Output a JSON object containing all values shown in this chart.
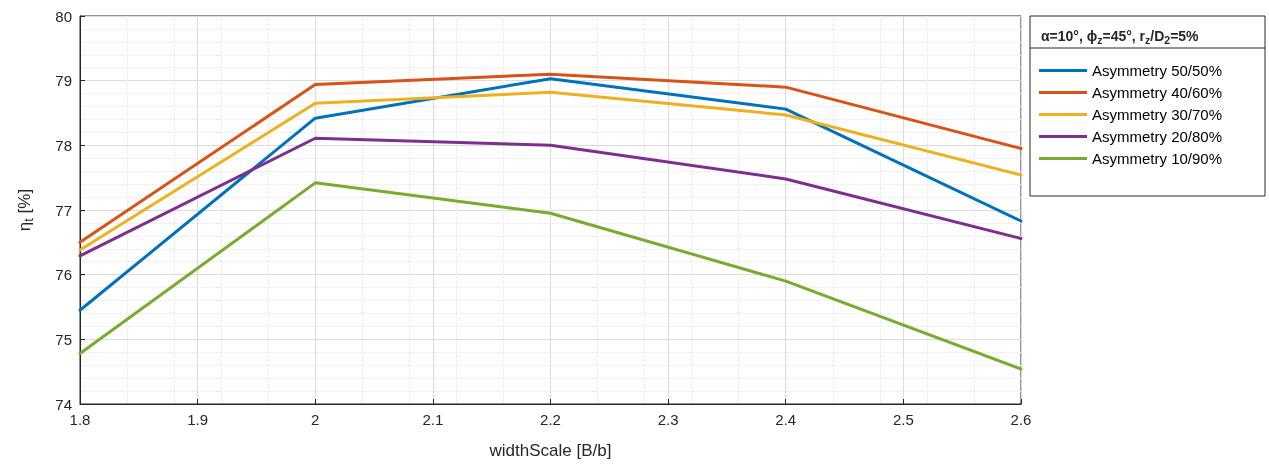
{
  "chart_data": {
    "type": "line",
    "xlabel": "widthScale [B/b]",
    "ylabel": "η$_{t}$ [%]",
    "legend_title": "α=10°, ϕ$_{z}$=45°, r$_{z}$/D$_{2}$=5%",
    "x": [
      1.8,
      2.0,
      2.2,
      2.4,
      2.6
    ],
    "series": [
      {
        "name": "Asymmetry 50/50%",
        "color": "#0072bd",
        "values": [
          75.45,
          78.42,
          79.03,
          78.56,
          76.83
        ]
      },
      {
        "name": "Asymmetry 40/60%",
        "color": "#d95319",
        "values": [
          76.5,
          78.94,
          79.1,
          78.9,
          77.95
        ]
      },
      {
        "name": "Asymmetry 30/70%",
        "color": "#edb120",
        "values": [
          76.38,
          78.65,
          78.82,
          78.47,
          77.54
        ]
      },
      {
        "name": "Asymmetry 20/80%",
        "color": "#7e2f8e",
        "values": [
          76.29,
          78.11,
          78.0,
          77.48,
          76.56
        ]
      },
      {
        "name": "Asymmetry 10/90%",
        "color": "#77ac30",
        "values": [
          74.78,
          77.42,
          76.95,
          75.9,
          74.54
        ]
      }
    ],
    "xlim": [
      1.8,
      2.6
    ],
    "xticks": [
      1.8,
      1.9,
      2,
      2.1,
      2.2,
      2.3,
      2.4,
      2.5,
      2.6
    ],
    "ylim": [
      74,
      80
    ],
    "yticks": [
      74,
      75,
      76,
      77,
      78,
      79,
      80
    ],
    "grid": true,
    "legend": "right",
    "marker": "none",
    "line_style": "solid"
  }
}
